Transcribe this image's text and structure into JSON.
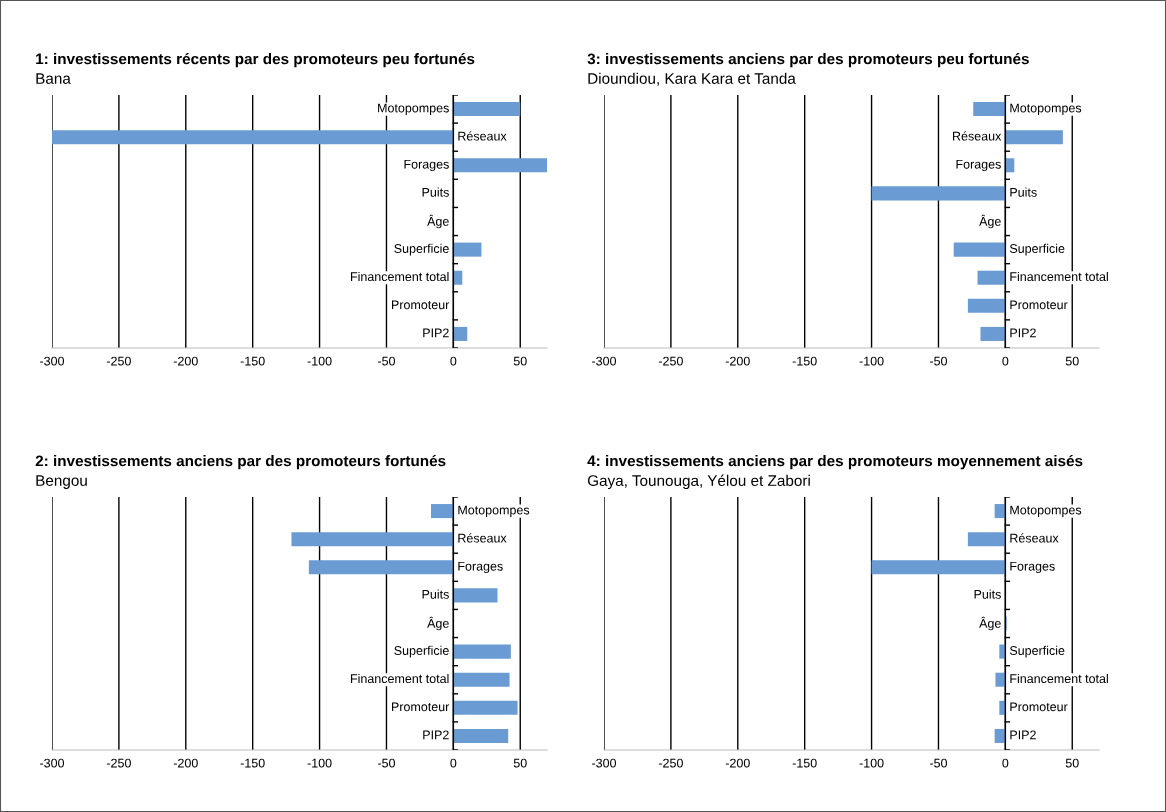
{
  "chart_data": [
    {
      "type": "bar",
      "orientation": "horizontal",
      "title": "1: investissements récents par des promoteurs peu fortunés",
      "subtitle": "Bana",
      "categories": [
        "Motopompes",
        "Réseaux",
        "Forages",
        "Puits",
        "Âge",
        "Superficie",
        "Financement total",
        "Promoteur",
        "PIP2"
      ],
      "values": [
        50,
        -300,
        70,
        0,
        0,
        21,
        6.7,
        0,
        10.4
      ],
      "color": "#6a9bd3",
      "xlim": [
        -300,
        70
      ],
      "xticks": [
        -300,
        -250,
        -200,
        -150,
        -100,
        -50,
        0,
        50
      ],
      "grid": "x"
    },
    {
      "type": "bar",
      "orientation": "horizontal",
      "title": "3: investissements anciens par des promoteurs peu fortunés",
      "subtitle": "Dioundiou, Kara Kara et Tanda",
      "categories": [
        "Motopompes",
        "Réseaux",
        "Forages",
        "Puits",
        "Âge",
        "Superficie",
        "Financement total",
        "Promoteur",
        "PIP2"
      ],
      "values": [
        -24,
        43,
        6.7,
        -100,
        0,
        -38.6,
        -20.8,
        -28,
        -18.6
      ],
      "color": "#6a9bd3",
      "xlim": [
        -300,
        70
      ],
      "xticks": [
        -300,
        -250,
        -200,
        -150,
        -100,
        -50,
        0,
        50
      ],
      "grid": "x"
    },
    {
      "type": "bar",
      "orientation": "horizontal",
      "title": "2: investissements anciens par des promoteurs fortunés",
      "subtitle": "Bengou",
      "categories": [
        "Motopompes",
        "Réseaux",
        "Forages",
        "Puits",
        "Âge",
        "Superficie",
        "Financement total",
        "Promoteur",
        "PIP2"
      ],
      "values": [
        -16.7,
        -121,
        -108,
        33,
        0,
        43,
        42,
        48,
        41
      ],
      "color": "#6a9bd3",
      "xlim": [
        -300,
        70
      ],
      "xticks": [
        -300,
        -250,
        -200,
        -150,
        -100,
        -50,
        0,
        50
      ],
      "grid": "x"
    },
    {
      "type": "bar",
      "orientation": "horizontal",
      "title": "4: investissements anciens par des promoteurs moyennement aisés",
      "subtitle": "Gaya, Tounouga, Yélou et Zabori",
      "categories": [
        "Motopompes",
        "Réseaux",
        "Forages",
        "Puits",
        "Âge",
        "Superficie",
        "Financement total",
        "Promoteur",
        "PIP2"
      ],
      "values": [
        -8,
        -28,
        -100,
        0,
        1,
        -4.5,
        -7.4,
        -4.5,
        -8
      ],
      "color": "#6a9bd3",
      "xlim": [
        -300,
        70
      ],
      "xticks": [
        -300,
        -250,
        -200,
        -150,
        -100,
        -50,
        0,
        50
      ],
      "grid": "x"
    }
  ]
}
